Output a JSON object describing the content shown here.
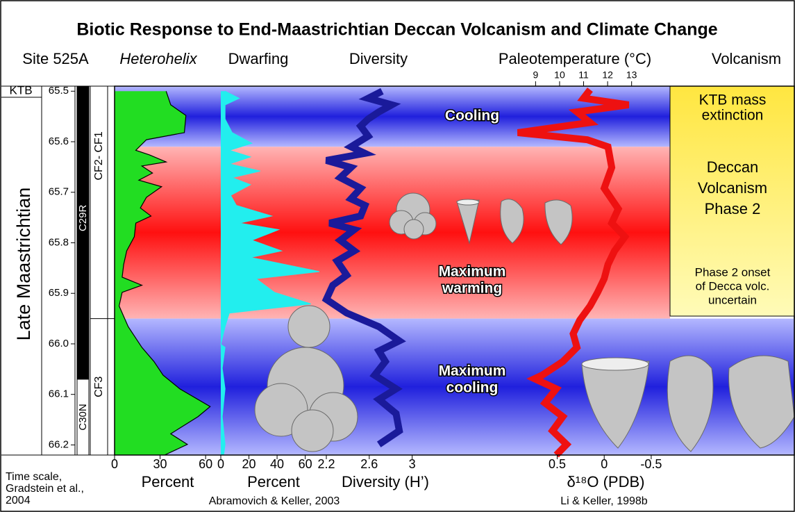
{
  "title": "Biotic Response to End-Maastrichtian Deccan Volcanism and Climate Change",
  "column_headers": [
    "Site 525A",
    "Heterohelix",
    "Dwarfing",
    "Diversity",
    "Paleotemperature (°C)",
    "Volcanism"
  ],
  "time_scale": {
    "boundary_label": "KTB",
    "stage": "Late Maastrichtian",
    "chrons": [
      {
        "name": "C29R",
        "from": 65.49,
        "to": 66.07
      },
      {
        "name": "C30N",
        "from": 66.07,
        "to": 66.22
      }
    ],
    "zones": [
      {
        "name": "CF2- CF1",
        "from": 65.49,
        "to": 65.95
      },
      {
        "name": "CF3",
        "from": 65.95,
        "to": 66.22
      }
    ],
    "credit": [
      "Time scale,",
      "Gradstein et al.,",
      "2004"
    ]
  },
  "bands": [
    {
      "lines": [
        "Cooling"
      ],
      "from": 65.49,
      "to": 65.61,
      "color": "blue"
    },
    {
      "lines": [
        "Maximum",
        "warming"
      ],
      "from": 65.61,
      "to": 65.95,
      "color": "red"
    },
    {
      "lines": [
        "Maximum",
        "cooling"
      ],
      "from": 65.95,
      "to": 66.22,
      "color": "blue"
    }
  ],
  "volcanism": [
    {
      "lines": [
        "KTB mass",
        "extinction"
      ]
    },
    {
      "lines": [
        "Deccan",
        "Volcanism",
        "Phase 2"
      ]
    },
    {
      "lines": [
        "Phase 2 onset",
        "of Decca volc.",
        "uncertain"
      ]
    }
  ],
  "credits": [
    "Abramovich & Keller, 2003",
    "Li & Keller, 1998b"
  ],
  "chart_data": [
    {
      "type": "area",
      "name": "Heterohelix",
      "color": "#22dd22",
      "xlabel": "Percent",
      "xlim": [
        0,
        70
      ],
      "xticks": [
        0,
        30,
        60
      ],
      "ylim": [
        65.49,
        66.22
      ],
      "yticks": [
        65.5,
        65.6,
        65.7,
        65.8,
        65.9,
        {
          "value": 66.0,
          "label": "66.0"
        },
        66.1,
        66.2
      ],
      "y": [
        65.5,
        65.527,
        65.548,
        65.582,
        65.596,
        65.617,
        65.626,
        65.64,
        65.648,
        65.662,
        65.676,
        65.689,
        65.71,
        65.731,
        65.747,
        65.761,
        65.788,
        65.816,
        65.843,
        65.868,
        65.884,
        65.898,
        65.925,
        65.966,
        66.007,
        66.035,
        66.062,
        66.089,
        66.124,
        66.144,
        66.178,
        66.199,
        66.22
      ],
      "values": [
        34,
        37,
        47,
        46,
        21,
        14,
        23,
        34,
        18,
        25,
        16,
        31,
        21,
        17,
        24,
        14,
        13,
        8,
        6,
        5,
        18,
        5,
        3,
        9,
        18,
        26,
        32,
        43,
        63,
        55,
        37,
        48,
        33
      ]
    },
    {
      "type": "area",
      "name": "Dwarfing",
      "color": "#22eeee",
      "xlabel": "Percent",
      "xlim": [
        0,
        75
      ],
      "xticks": [
        0,
        20,
        40,
        60
      ],
      "ylim": [
        65.49,
        66.22
      ],
      "y": [
        65.5,
        65.514,
        65.527,
        65.555,
        65.582,
        65.603,
        65.617,
        65.63,
        65.644,
        65.658,
        65.671,
        65.685,
        65.706,
        65.726,
        65.747,
        65.761,
        65.774,
        65.795,
        65.816,
        65.829,
        65.857,
        65.871,
        65.898,
        65.921,
        65.939,
        65.966,
        66.001,
        66.007,
        66.048,
        66.089,
        66.144,
        66.199,
        66.22
      ],
      "values": [
        3,
        13,
        3,
        3,
        8,
        22,
        6,
        21,
        6,
        28,
        8,
        21,
        7,
        11,
        36,
        13,
        41,
        22,
        43,
        21,
        70,
        25,
        38,
        64,
        6,
        3,
        0,
        3,
        1,
        3,
        1,
        3,
        2
      ]
    },
    {
      "type": "line",
      "name": "Diversity",
      "color": "#1a1a9a",
      "xlabel": "Diversity (H’)",
      "xlim": [
        2.2,
        3.3
      ],
      "xticks": [
        2.2,
        2.6,
        3
      ],
      "ylim": [
        65.49,
        66.22
      ],
      "y": [
        65.5,
        65.514,
        65.527,
        65.541,
        65.555,
        65.569,
        65.589,
        65.61,
        65.623,
        65.637,
        65.651,
        65.671,
        65.692,
        65.713,
        65.726,
        65.747,
        65.761,
        65.774,
        65.795,
        65.816,
        65.836,
        65.864,
        65.884,
        65.912,
        65.939,
        65.966,
        65.994,
        66.014,
        66.035,
        66.062,
        66.089,
        66.11,
        66.138,
        66.172,
        66.199
      ],
      "values": [
        2.72,
        2.59,
        2.81,
        2.69,
        2.59,
        2.52,
        2.59,
        2.43,
        2.56,
        2.2,
        2.43,
        2.33,
        2.52,
        2.43,
        2.56,
        2.52,
        2.23,
        2.46,
        2.33,
        2.46,
        2.3,
        2.39,
        2.26,
        2.2,
        2.39,
        2.69,
        2.88,
        2.69,
        2.75,
        2.65,
        2.85,
        2.69,
        2.85,
        2.88,
        2.69
      ]
    },
    {
      "type": "line",
      "name": "d18O",
      "color": "#ee1111",
      "xlabel": "δ¹⁸O (PDB)",
      "xlim": [
        1.7,
        -0.7
      ],
      "xticks": [
        0.5,
        0,
        -0.5
      ],
      "ylim": [
        65.49,
        66.22
      ],
      "x2lim": [
        5.2,
        14.6
      ],
      "x2ticks": [
        9,
        10,
        11,
        12,
        13
      ],
      "y": [
        65.497,
        65.514,
        65.527,
        65.541,
        65.562,
        65.582,
        65.596,
        65.61,
        65.651,
        65.692,
        65.733,
        65.761,
        65.788,
        65.816,
        65.843,
        65.871,
        65.898,
        65.925,
        65.953,
        65.98,
        66.007,
        66.035,
        66.062,
        66.069,
        66.089,
        66.117,
        66.144,
        66.172,
        66.199,
        66.22
      ],
      "values": [
        0.15,
        0.22,
        -0.26,
        0.29,
        0.15,
        0.92,
        0.18,
        -0.04,
        -0.08,
        0.0,
        -0.15,
        -0.08,
        -0.22,
        -0.11,
        -0.04,
        0.0,
        0.07,
        0.15,
        0.26,
        0.33,
        0.29,
        0.44,
        0.66,
        0.74,
        0.51,
        0.63,
        0.44,
        0.55,
        0.4,
        0.51
      ]
    }
  ]
}
